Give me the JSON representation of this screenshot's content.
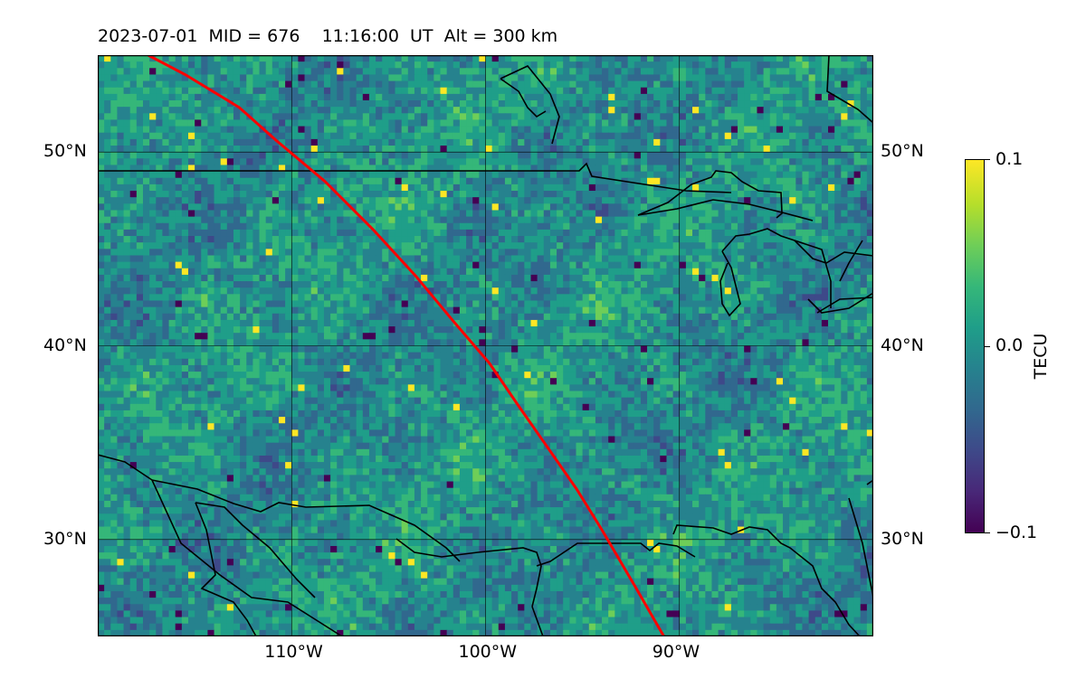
{
  "title": {
    "date": "2023-07-01",
    "mid": "MID = 676",
    "time": "11:16:00  UT",
    "alt": "Alt = 300 km"
  },
  "map": {
    "lon_range": [
      -120,
      -80
    ],
    "lat_range": [
      25,
      55
    ],
    "grid_lons": [
      -110,
      -100,
      -90
    ],
    "grid_lats": [
      30,
      40,
      50
    ],
    "lon_labels": [
      {
        "lon": -110,
        "text": "110°W"
      },
      {
        "lon": -100,
        "text": "100°W"
      },
      {
        "lon": -90,
        "text": "90°W"
      }
    ],
    "lat_labels": [
      {
        "lat": 50,
        "text": "50°N"
      },
      {
        "lat": 40,
        "text": "40°N"
      },
      {
        "lat": 30,
        "text": "30°N"
      }
    ],
    "track_color": "#ff0000",
    "track": [
      [
        -117.4,
        55
      ],
      [
        -115.5,
        54
      ],
      [
        -112.7,
        52.3
      ],
      [
        -110.8,
        50.6
      ],
      [
        -108.3,
        48.5
      ],
      [
        -105.8,
        46.0
      ],
      [
        -103.6,
        43.6
      ],
      [
        -101.6,
        41.2
      ],
      [
        -99.8,
        39.1
      ],
      [
        -98.3,
        36.9
      ],
      [
        -96.9,
        34.9
      ],
      [
        -95.3,
        32.6
      ],
      [
        -94.0,
        30.5
      ],
      [
        -92.3,
        27.6
      ],
      [
        -90.8,
        25
      ]
    ]
  },
  "colorbar": {
    "label": "TECU",
    "ticks": [
      "0.1",
      "0.0",
      "−0.1"
    ],
    "vmin": -0.1,
    "vmax": 0.1,
    "colormap": "viridis"
  }
}
